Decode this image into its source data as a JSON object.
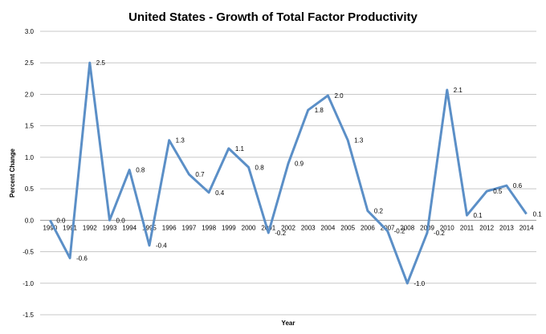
{
  "chart_data": {
    "type": "line",
    "title": "United States - Growth of Total Factor Productivity",
    "xlabel": "Year",
    "ylabel": "Percent Change",
    "ylim": [
      -1.5,
      3.0
    ],
    "yticks": [
      "3.0",
      "2.5",
      "2.0",
      "1.5",
      "1.0",
      "0.5",
      "0.0",
      "-0.5",
      "-1.0",
      "-1.5"
    ],
    "ytick_values": [
      3.0,
      2.5,
      2.0,
      1.5,
      1.0,
      0.5,
      0.0,
      -0.5,
      -1.0,
      -1.5
    ],
    "grid": true,
    "legend": "none",
    "line_color": "#5b8fc7",
    "categories": [
      "1990",
      "1991",
      "1992",
      "1993",
      "1994",
      "1995",
      "1996",
      "1997",
      "1998",
      "1999",
      "2000",
      "2001",
      "2002",
      "2003",
      "2004",
      "2005",
      "2006",
      "2007",
      "2008",
      "2009",
      "2010",
      "2011",
      "2012",
      "2013",
      "2014"
    ],
    "values": [
      0.0,
      -0.6,
      2.5,
      0.0,
      0.8,
      -0.4,
      1.27,
      0.73,
      0.44,
      1.14,
      0.84,
      -0.2,
      0.9,
      1.75,
      1.98,
      1.27,
      0.15,
      -0.17,
      -1.0,
      -0.2,
      2.07,
      0.08,
      0.46,
      0.55,
      0.1
    ],
    "data_labels": [
      "0.0",
      "-0.6",
      "2.5",
      "0.0",
      "0.8",
      "-0.4",
      "1.3",
      "0.7",
      "0.4",
      "1.1",
      "0.8",
      "-0.2",
      "0.9",
      "1.8",
      "2.0",
      "1.3",
      "0.2",
      "-0.2",
      "-1.0",
      "-0.2",
      "2.1",
      "0.1",
      "0.5",
      "0.6",
      "0.1"
    ]
  }
}
